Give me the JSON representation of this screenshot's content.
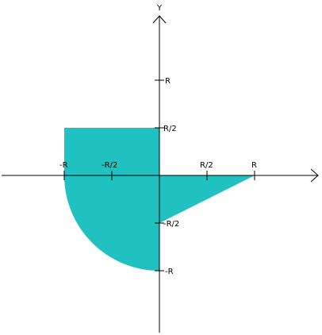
{
  "diagram": {
    "axis_y_label": "Y",
    "x_ticks": {
      "neg_r": "-R",
      "neg_half_r": "-R/2",
      "half_r": "R/2",
      "r": "R"
    },
    "y_ticks": {
      "r": "R",
      "half_r": "R/2",
      "neg_half_r": "-R/2",
      "neg_r": "-R"
    },
    "region_color": "#1FC1C1",
    "axis_color": "#000000",
    "regions": [
      {
        "shape": "rectangle",
        "quadrant": "II",
        "x": [
          -1,
          0
        ],
        "y": [
          0,
          0.5
        ]
      },
      {
        "shape": "quarter-circle",
        "quadrant": "III",
        "radius": 1
      },
      {
        "shape": "triangle",
        "quadrant": "IV",
        "vertices": [
          [
            0,
            0
          ],
          [
            1,
            0
          ],
          [
            0,
            -0.5
          ]
        ]
      }
    ]
  }
}
